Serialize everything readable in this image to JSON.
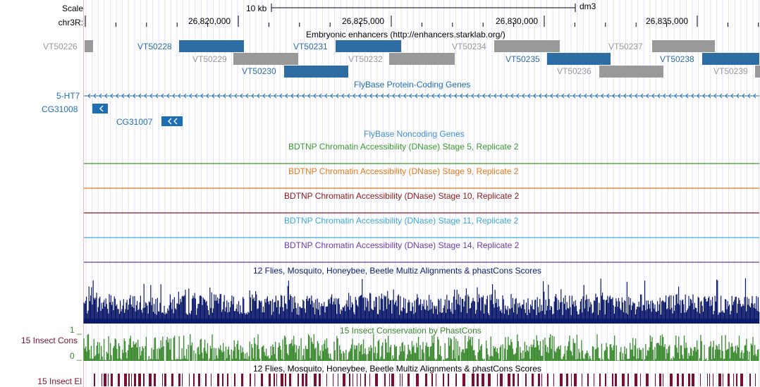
{
  "scale": {
    "label": "Scale",
    "bar_label": "10 kb",
    "assembly": "dm3"
  },
  "ruler": {
    "chrom_label": "chr3R:",
    "ticks": [
      "26,820,000",
      "26,825,000",
      "26,830,000",
      "26,835,000"
    ]
  },
  "tracks": {
    "enhancers": {
      "title": "Embryonic enhancers (http://enhancers.starklab.org/)",
      "items": [
        {
          "name": "VT50226",
          "color": "#999999"
        },
        {
          "name": "VT50228",
          "color": "#2e6da4"
        },
        {
          "name": "VT50229",
          "color": "#999999"
        },
        {
          "name": "VT50230",
          "color": "#2e6da4"
        },
        {
          "name": "VT50231",
          "color": "#2e6da4"
        },
        {
          "name": "VT50232",
          "color": "#999999"
        },
        {
          "name": "VT50234",
          "color": "#999999"
        },
        {
          "name": "VT50235",
          "color": "#2e6da4"
        },
        {
          "name": "VT50236",
          "color": "#999999"
        },
        {
          "name": "VT50237",
          "color": "#999999"
        },
        {
          "name": "VT50238",
          "color": "#2e6da4"
        },
        {
          "name": "VT50239",
          "color": "#999999"
        }
      ]
    },
    "protein_genes": {
      "title": "FlyBase Protein-Coding Genes",
      "color": "#1e6eb4",
      "genes": [
        "5-HT7",
        "CG31008",
        "CG31007"
      ]
    },
    "noncoding": {
      "title": "FlyBase Noncoding Genes",
      "color": "#3c8fd0"
    },
    "dnase": [
      {
        "title": "BDTNP Chromatin Accessibility (DNase) Stage 5, Replicate 2",
        "color": "#3a9a2e"
      },
      {
        "title": "BDTNP Chromatin Accessibility (DNase) Stage 9, Replicate 2",
        "color": "#e8791a"
      },
      {
        "title": "BDTNP Chromatin Accessibility (DNase) Stage 10, Replicate 2",
        "color": "#8b1a1a"
      },
      {
        "title": "BDTNP Chromatin Accessibility (DNase) Stage 11, Replicate 2",
        "color": "#3ea9d6"
      },
      {
        "title": "BDTNP Chromatin Accessibility (DNase) Stage 14, Replicate 2",
        "color": "#6b3fa0"
      }
    ],
    "multiz": {
      "title": "12 Flies, Mosquito, Honeybee, Beetle Multiz Alignments & phastCons Scores",
      "color": "#0d1a6b"
    },
    "insect_cons": {
      "title": "15 Insect Conservation by PhastCons",
      "left_label": "15 Insect Cons",
      "axis_max": "1 _",
      "axis_min": "0 _",
      "color": "#3a8a2e"
    },
    "insect_el": {
      "title": "12 Flies, Mosquito, Honeybee, Beetle Multiz Alignments & phastCons Scores",
      "left_label": "15 Insect El",
      "color": "#7a1030"
    }
  }
}
